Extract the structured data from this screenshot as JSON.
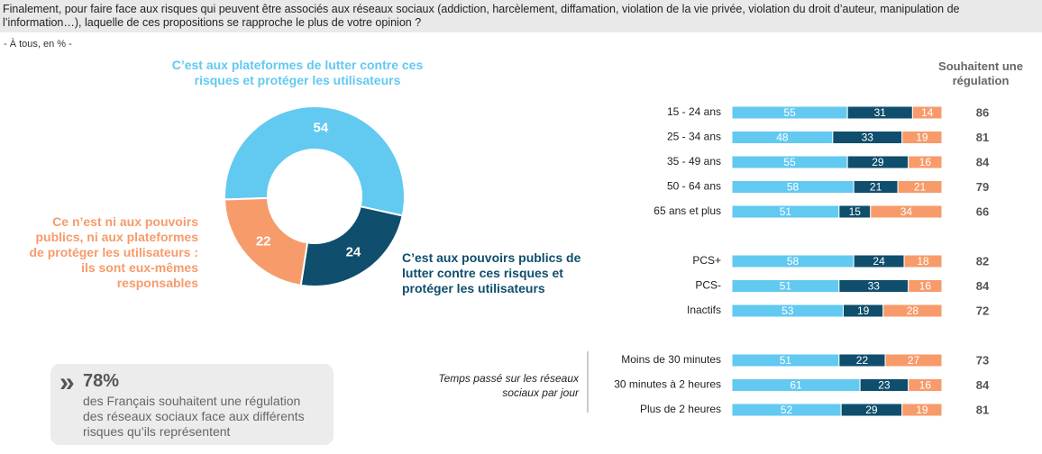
{
  "header": {
    "question": "Finalement, pour faire face aux risques qui peuvent être associés aux réseaux sociaux (addiction, harcèlement, diffamation, violation de la vie privée, violation du droit d’auteur, manipulation de l’information…), laquelle de ces propositions se rapproche le plus de votre opinion ?",
    "note": "- À tous, en % -"
  },
  "chart_data": [
    {
      "type": "donut",
      "categories": [
        "C’est aux plateformes de lutter contre ces risques et protéger les utilisateurs",
        "C’est aux pouvoirs publics de lutter contre ces risques et protéger les utilisateurs",
        "Ce n’est ni aux pouvoirs publics, ni aux plateformes de protéger les utilisateurs : ils sont eux-mêmes responsables"
      ],
      "values": [
        54,
        24,
        22
      ],
      "colors": [
        "#62c9f1",
        "#0f4e6c",
        "#f79b6b"
      ]
    },
    {
      "type": "stacked-bar-horizontal",
      "categories": [
        "15 - 24 ans",
        "25 - 34 ans",
        "35 - 49 ans",
        "50 - 64 ans",
        "65 ans et plus",
        "PCS+",
        "PCS-",
        "Inactifs",
        "Moins de 30 minutes",
        "30 minutes à 2 heures",
        "Plus de 2 heures"
      ],
      "xlim": [
        0,
        100
      ],
      "series": [
        {
          "color": "#62c9f1",
          "values": [
            55,
            48,
            55,
            58,
            51,
            58,
            51,
            53,
            51,
            61,
            52
          ]
        },
        {
          "color": "#0f4e6c",
          "values": [
            31,
            33,
            29,
            21,
            15,
            24,
            33,
            19,
            22,
            23,
            29
          ]
        },
        {
          "color": "#f79b6b",
          "values": [
            14,
            19,
            16,
            21,
            34,
            18,
            16,
            28,
            27,
            16,
            19
          ]
        }
      ],
      "totals": {
        "title": "Souhaitent une régulation",
        "values": [
          86,
          81,
          84,
          79,
          66,
          82,
          84,
          72,
          73,
          84,
          81
        ]
      },
      "annotation": "Temps passé sur les réseaux sociaux par jour"
    }
  ],
  "callout": {
    "figure": "78%",
    "text": "des Français souhaitent une régulation des réseaux sociaux face aux différents risques qu’ils représentent"
  }
}
